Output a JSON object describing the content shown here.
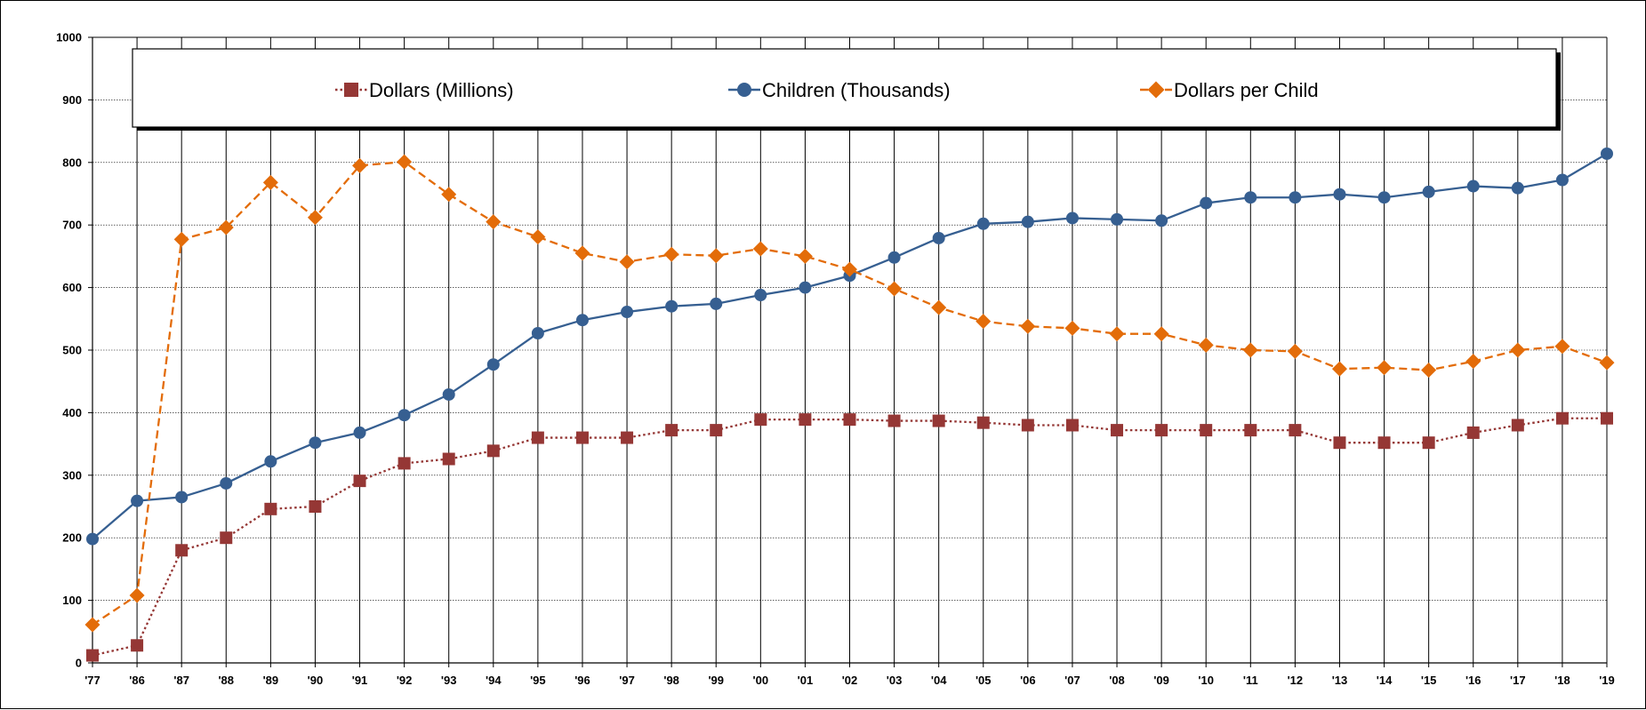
{
  "chart_data": {
    "type": "line",
    "title": "",
    "xlabel": "",
    "ylabel": "",
    "ylim": [
      0,
      1000
    ],
    "yticks": [
      0,
      100,
      200,
      300,
      400,
      500,
      600,
      700,
      800,
      900,
      1000
    ],
    "categories": [
      "'77",
      "'86",
      "'87",
      "'88",
      "'89",
      "'90",
      "'91",
      "'92",
      "'93",
      "'94",
      "'95",
      "'96",
      "'97",
      "'98",
      "'99",
      "'00",
      "'01",
      "'02",
      "'03",
      "'04",
      "'05",
      "'06",
      "'07",
      "'08",
      "'09",
      "'10",
      "'11",
      "'12",
      "'13",
      "'14",
      "'15",
      "'16",
      "'17",
      "'18",
      "'19"
    ],
    "grid": {
      "horizontal": true,
      "vertical": true
    },
    "legend_position": "top",
    "series": [
      {
        "name": "Dollars (Millions)",
        "color": "#953735",
        "marker": "square",
        "line_style": "dotted",
        "values": [
          12,
          28,
          180,
          200,
          246,
          250,
          291,
          319,
          326,
          339,
          360,
          360,
          360,
          372,
          372,
          389,
          389,
          389,
          387,
          387,
          384,
          380,
          380,
          372,
          372,
          372,
          372,
          372,
          352,
          352,
          352,
          368,
          380,
          391,
          391
        ]
      },
      {
        "name": "Children (Thousands)",
        "color": "#365F91",
        "marker": "circle",
        "line_style": "solid",
        "values": [
          198,
          259,
          265,
          287,
          322,
          352,
          368,
          396,
          429,
          477,
          527,
          548,
          561,
          570,
          574,
          588,
          600,
          619,
          648,
          679,
          702,
          705,
          711,
          709,
          707,
          735,
          744,
          744,
          749,
          744,
          753,
          762,
          759,
          772,
          814
        ]
      },
      {
        "name": "Dollars per Child",
        "color": "#E36C09",
        "marker": "diamond",
        "line_style": "dashed",
        "values": [
          61,
          108,
          677,
          696,
          768,
          712,
          795,
          801,
          749,
          705,
          681,
          655,
          641,
          653,
          651,
          662,
          650,
          629,
          598,
          568,
          546,
          538,
          535,
          526,
          526,
          508,
          500,
          498,
          470,
          472,
          468,
          482,
          500,
          506,
          480
        ]
      }
    ]
  }
}
